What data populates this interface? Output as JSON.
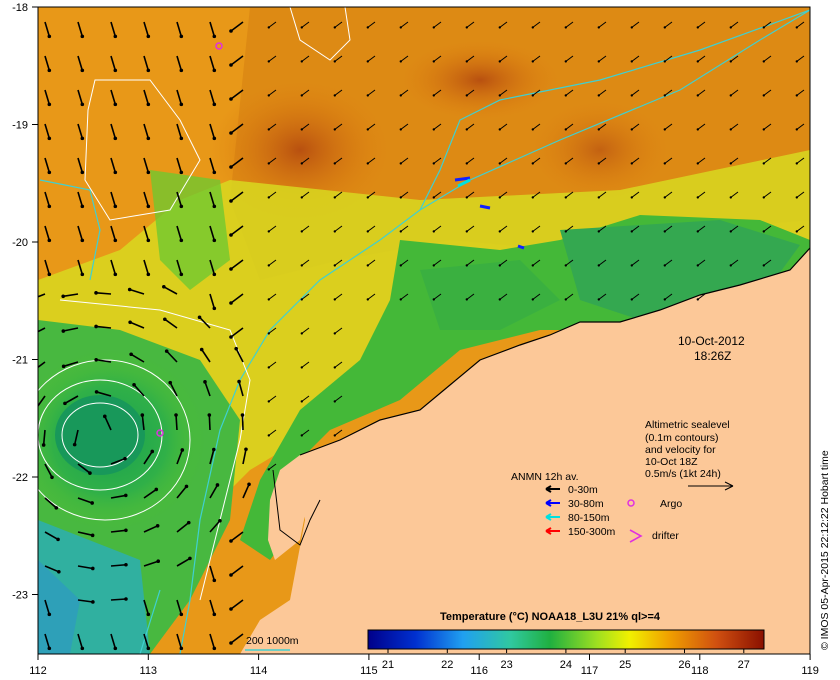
{
  "map": {
    "datetime_line1": "10-Oct-2012",
    "datetime_line2": "18:26Z",
    "credit": "© IMOS 05-Apr-2015 22:12:22 Hobart time",
    "x_ticks": [
      "112",
      "113",
      "114",
      "115",
      "116",
      "117",
      "118",
      "119"
    ],
    "y_ticks": [
      "-18",
      "-19",
      "-20",
      "-21",
      "-22",
      "-23"
    ],
    "colors": {
      "land": "#fcc898",
      "sea_warm": "#e89010",
      "sea_cool": "#30b040",
      "isobath": "#40d0d0",
      "contour": "#ffffff",
      "argo": "#e030e0"
    }
  },
  "altimetry": {
    "line1": "Altimetric sealevel",
    "line2": "(0.1m contours)",
    "line3": "and velocity for",
    "line4": "10-Oct 18Z",
    "line5": "0.5m/s (1kt 24h)"
  },
  "anmn": {
    "title": "ANMN 12h av.",
    "items": [
      {
        "label": "0-30m",
        "color": "#000000"
      },
      {
        "label": "30-80m",
        "color": "#0000ff"
      },
      {
        "label": "80-150m",
        "color": "#00e0e0"
      },
      {
        "label": "150-300m",
        "color": "#ff0000"
      }
    ],
    "argo_label": "Argo",
    "drifter_label": "drifter"
  },
  "isobath_legend": "200 1000m",
  "colorbar": {
    "title": "Temperature (°C) NOAA18_L3U 21% ql>=4",
    "ticks": [
      "21",
      "22",
      "23",
      "24",
      "25",
      "26",
      "27"
    ]
  }
}
